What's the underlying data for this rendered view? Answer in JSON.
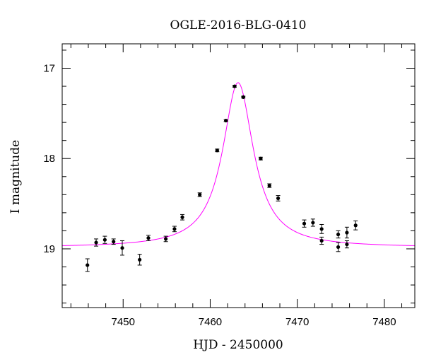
{
  "chart_data": {
    "type": "scatter",
    "title": "OGLE-2016-BLG-0410",
    "xlabel": "HJD - 2450000",
    "ylabel": "I magnitude",
    "xlim": [
      7443,
      7483.5
    ],
    "ylim": [
      19.65,
      16.73
    ],
    "y_inverted": true,
    "x_major_ticks": [
      7450,
      7460,
      7470,
      7480
    ],
    "x_tick_labels": [
      "7450",
      "7460",
      "7470",
      "7480"
    ],
    "x_minor_step": 2,
    "y_major_ticks": [
      17,
      18,
      19
    ],
    "y_tick_labels": [
      "17",
      "18",
      "19"
    ],
    "y_minor_step": 0.2,
    "grid": false,
    "series": [
      {
        "kind": "points_with_errorbars",
        "color": "#000000",
        "points": [
          {
            "x": 7445.9,
            "y": 19.18,
            "err": 0.07
          },
          {
            "x": 7446.9,
            "y": 18.93,
            "err": 0.04
          },
          {
            "x": 7447.9,
            "y": 18.9,
            "err": 0.04
          },
          {
            "x": 7448.9,
            "y": 18.92,
            "err": 0.03
          },
          {
            "x": 7449.9,
            "y": 18.99,
            "err": 0.08
          },
          {
            "x": 7451.9,
            "y": 19.12,
            "err": 0.06
          },
          {
            "x": 7452.9,
            "y": 18.88,
            "err": 0.03
          },
          {
            "x": 7454.9,
            "y": 18.89,
            "err": 0.03
          },
          {
            "x": 7455.9,
            "y": 18.78,
            "err": 0.03
          },
          {
            "x": 7456.8,
            "y": 18.65,
            "err": 0.03
          },
          {
            "x": 7458.8,
            "y": 18.4,
            "err": 0.02
          },
          {
            "x": 7460.8,
            "y": 17.91,
            "err": 0.015
          },
          {
            "x": 7461.8,
            "y": 17.58,
            "err": 0.01
          },
          {
            "x": 7462.8,
            "y": 17.2,
            "err": 0.01
          },
          {
            "x": 7463.8,
            "y": 17.32,
            "err": 0.01
          },
          {
            "x": 7465.8,
            "y": 18.0,
            "err": 0.015
          },
          {
            "x": 7466.8,
            "y": 18.3,
            "err": 0.02
          },
          {
            "x": 7467.8,
            "y": 18.44,
            "err": 0.03
          },
          {
            "x": 7470.8,
            "y": 18.72,
            "err": 0.04
          },
          {
            "x": 7471.8,
            "y": 18.71,
            "err": 0.04
          },
          {
            "x": 7472.8,
            "y": 18.78,
            "err": 0.05
          },
          {
            "x": 7472.8,
            "y": 18.91,
            "err": 0.04
          },
          {
            "x": 7474.7,
            "y": 18.84,
            "err": 0.04
          },
          {
            "x": 7474.7,
            "y": 18.98,
            "err": 0.05
          },
          {
            "x": 7475.7,
            "y": 18.82,
            "err": 0.06
          },
          {
            "x": 7475.7,
            "y": 18.95,
            "err": 0.04
          },
          {
            "x": 7476.7,
            "y": 18.74,
            "err": 0.05
          }
        ]
      },
      {
        "kind": "model_curve",
        "color": "#ff00ff",
        "model": {
          "t0": 7463.2,
          "baseline": 18.985,
          "peak": 17.16,
          "width": 2.15
        }
      }
    ]
  }
}
